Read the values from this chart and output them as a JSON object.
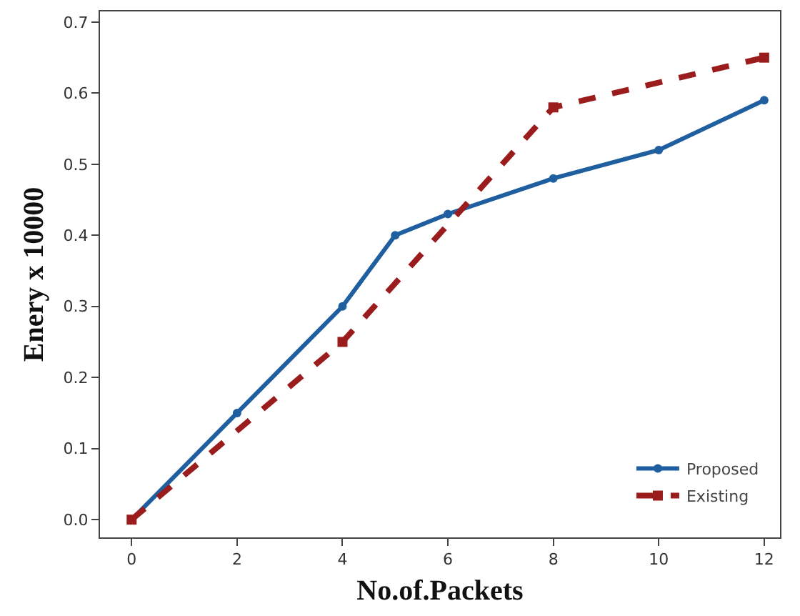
{
  "chart_data": {
    "type": "line",
    "xlabel": "No.of.Packets",
    "ylabel": "Enery x 10000",
    "series": [
      {
        "name": "Proposed",
        "color": "#1f5fa0",
        "x": [
          0,
          2,
          4,
          5,
          6,
          8,
          10,
          12
        ],
        "values": [
          0,
          0.15,
          0.3,
          0.4,
          0.43,
          0.48,
          0.52,
          0.59
        ],
        "marker": "circle",
        "line_style": "solid"
      },
      {
        "name": "Existing",
        "color": "#9b1c1c",
        "x": [
          0,
          4,
          8,
          12
        ],
        "values": [
          0,
          0.25,
          0.58,
          0.65
        ],
        "marker": "square",
        "line_style": "dashed"
      }
    ],
    "xlim": [
      -0.6,
      12.3
    ],
    "xticks": [
      0,
      2,
      4,
      6,
      8,
      10,
      12
    ],
    "ylim": [
      -0.025,
      0.715
    ],
    "yticks": [
      {
        "value": 0,
        "label": "0.0"
      },
      0.1,
      0.2,
      0.3,
      0.4,
      0.5,
      0.6,
      0.7
    ],
    "grid": false,
    "legend": "bottom right"
  }
}
